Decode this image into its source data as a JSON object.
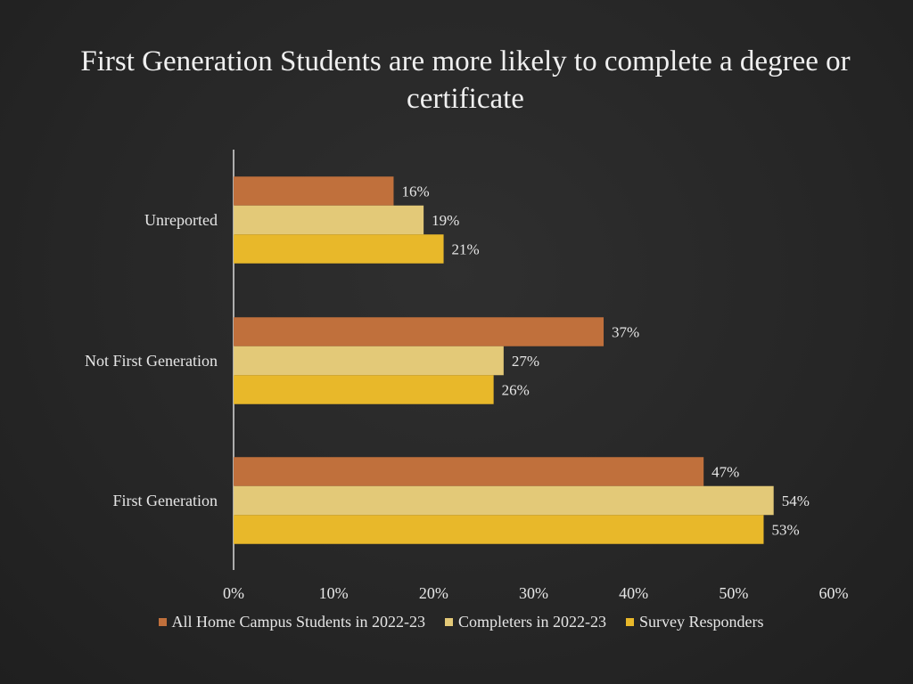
{
  "slide": {
    "title": "First Generation Students are more likely to complete a degree or certificate"
  },
  "colors": {
    "series_1": "#c0703c",
    "series_2": "#e3c978",
    "series_3": "#e8b82a",
    "axis": "#d9d9d9",
    "text": "#e6e6e6"
  },
  "chart_data": {
    "type": "bar",
    "orientation": "horizontal",
    "title": "First Generation Students are more likely to complete a degree or certificate",
    "xlabel": "",
    "ylabel": "",
    "categories": [
      "Unreported",
      "Not First Generation",
      "First Generation"
    ],
    "series": [
      {
        "name": "All Home Campus Students in 2022-23",
        "values": [
          16,
          37,
          47
        ],
        "labels": [
          "16%",
          "37%",
          "47%"
        ]
      },
      {
        "name": "Completers in 2022-23",
        "values": [
          19,
          27,
          54
        ],
        "labels": [
          "19%",
          "27%",
          "54%"
        ]
      },
      {
        "name": "Survey Responders",
        "values": [
          21,
          26,
          53
        ],
        "labels": [
          "21%",
          "26%",
          "53%"
        ]
      }
    ],
    "xlim": [
      0,
      60
    ],
    "x_ticks": [
      "0%",
      "10%",
      "20%",
      "30%",
      "40%",
      "50%",
      "60%"
    ],
    "grid": false,
    "legend_position": "bottom"
  }
}
